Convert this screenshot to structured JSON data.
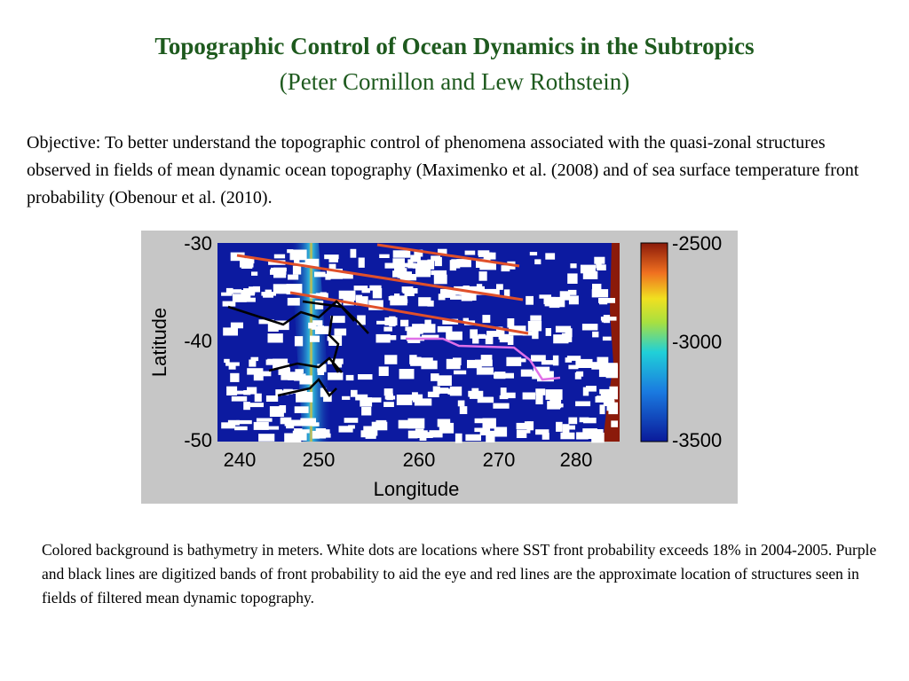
{
  "header": {
    "title": "Topographic Control of Ocean Dynamics in the Subtropics",
    "authors": "(Peter Cornillon and Lew Rothstein)"
  },
  "objective": "Objective: To better understand the topographic control of phenomena associated with the quasi-zonal structures observed in fields of mean dynamic ocean topography (Maximenko et al. (2008) and of sea surface temperature front probability (Obenour et al. (2010).",
  "figure": {
    "xlabel": "Longitude",
    "ylabel": "Latitude",
    "x_ticks": [
      "240",
      "250",
      "260",
      "270",
      "280"
    ],
    "y_ticks": [
      "-30",
      "-40",
      "-50"
    ],
    "colorbar_ticks": [
      "-2500",
      "-3000",
      "-3500"
    ],
    "colors": {
      "deep": "#0c1aa0",
      "shallow": "#8b1a0a",
      "red_line": "#e0502a",
      "purple_line": "#e070e8",
      "black_line": "#000000",
      "dots": "#ffffff"
    }
  },
  "caption": "Colored background is bathymetry in meters. White dots are locations where SST front probability exceeds 18% in 2004-2005. Purple and black lines are digitized bands of front probability to aid the eye and red lines are the approximate location of structures seen in fields of filtered mean dynamic topography."
}
